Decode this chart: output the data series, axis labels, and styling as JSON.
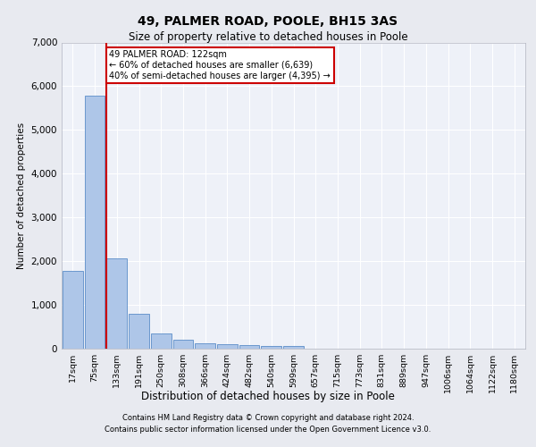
{
  "title_line1": "49, PALMER ROAD, POOLE, BH15 3AS",
  "title_line2": "Size of property relative to detached houses in Poole",
  "xlabel": "Distribution of detached houses by size in Poole",
  "ylabel": "Number of detached properties",
  "footnote1": "Contains HM Land Registry data © Crown copyright and database right 2024.",
  "footnote2": "Contains public sector information licensed under the Open Government Licence v3.0.",
  "annotation_title": "49 PALMER ROAD: 122sqm",
  "annotation_line2": "← 60% of detached houses are smaller (6,639)",
  "annotation_line3": "40% of semi-detached houses are larger (4,395) →",
  "bar_color": "#aec6e8",
  "bar_edge_color": "#5b8dc8",
  "highlight_line_color": "#cc0000",
  "annotation_box_color": "#cc0000",
  "background_color": "#e8eaf0",
  "plot_bg_color": "#eef1f8",
  "grid_color": "#ffffff",
  "bin_labels": [
    "17sqm",
    "75sqm",
    "133sqm",
    "191sqm",
    "250sqm",
    "308sqm",
    "366sqm",
    "424sqm",
    "482sqm",
    "540sqm",
    "599sqm",
    "657sqm",
    "715sqm",
    "773sqm",
    "831sqm",
    "889sqm",
    "947sqm",
    "1006sqm",
    "1064sqm",
    "1122sqm",
    "1180sqm"
  ],
  "bin_values": [
    1780,
    5780,
    2060,
    800,
    340,
    200,
    120,
    110,
    90,
    70,
    60,
    0,
    0,
    0,
    0,
    0,
    0,
    0,
    0,
    0,
    0
  ],
  "highlight_bin_index": 2,
  "ylim": [
    0,
    7000
  ],
  "yticks": [
    0,
    1000,
    2000,
    3000,
    4000,
    5000,
    6000,
    7000
  ]
}
